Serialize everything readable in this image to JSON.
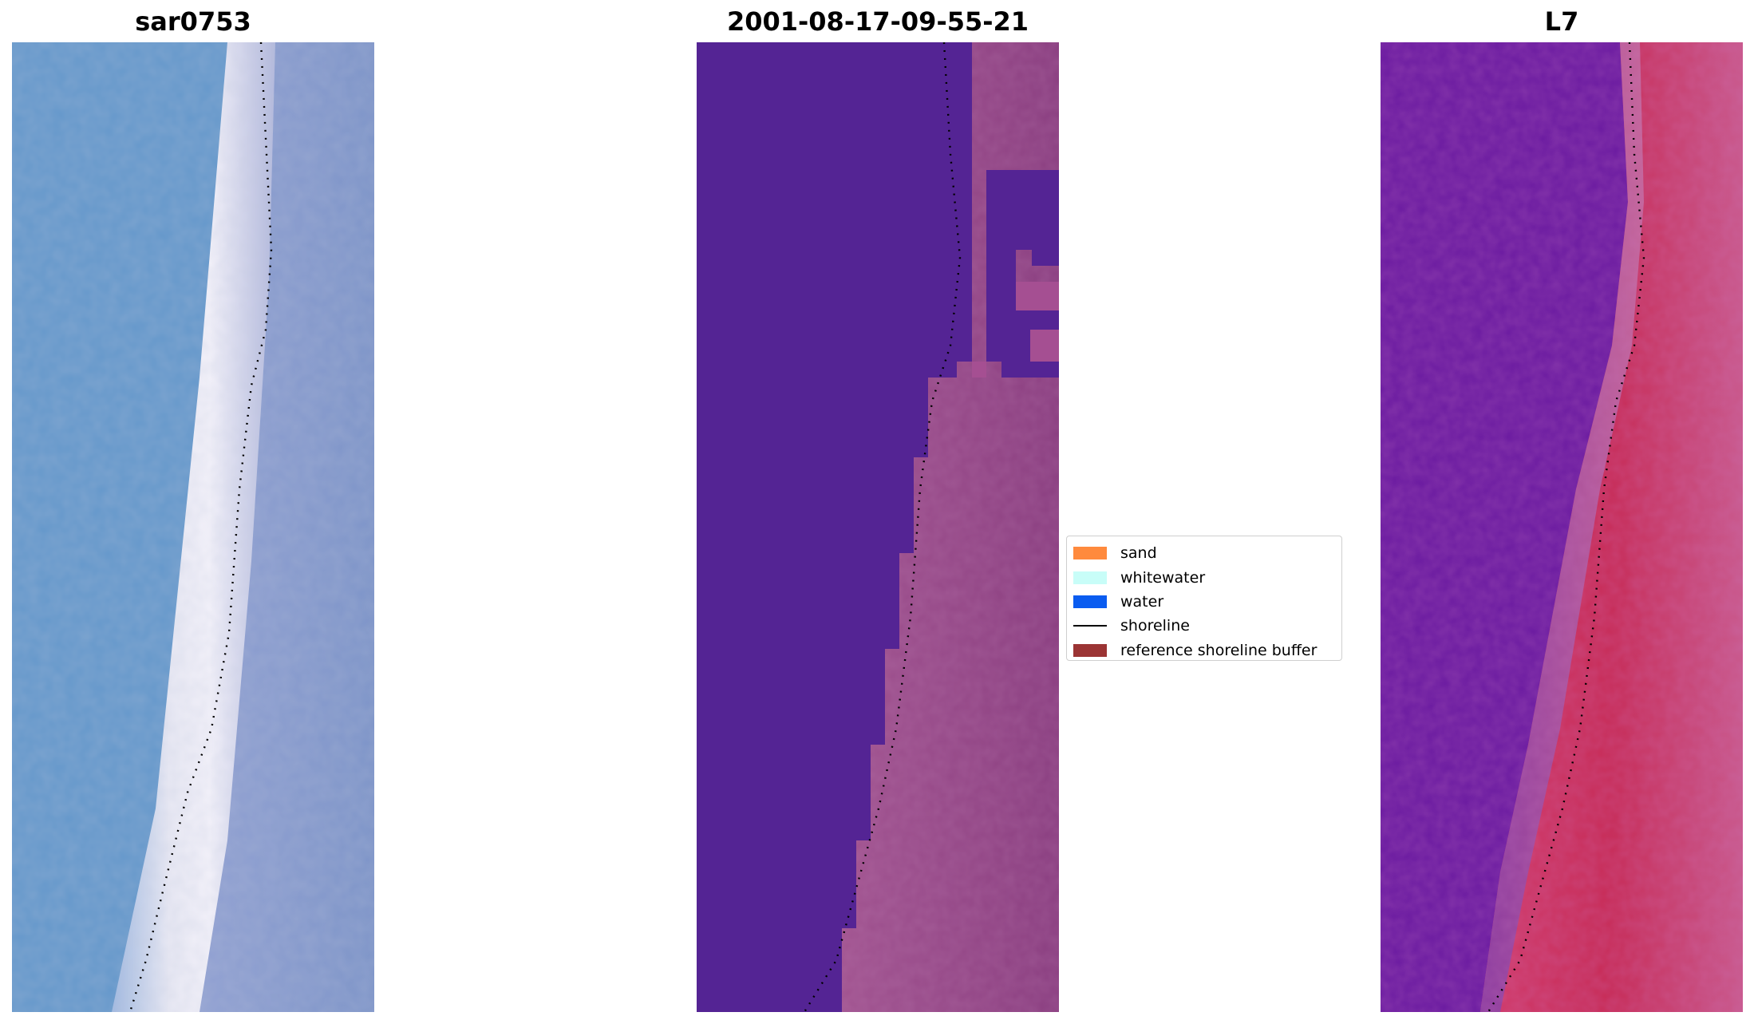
{
  "panels": [
    {
      "id": "rgb",
      "title": "sar0753"
    },
    {
      "id": "classified",
      "title": "2001-08-17-09-55-21"
    },
    {
      "id": "index",
      "title": "L7"
    }
  ],
  "legend": {
    "items": [
      {
        "label": "sand",
        "kind": "patch",
        "color": "#ff8a3d"
      },
      {
        "label": "whitewater",
        "kind": "patch",
        "color": "#c8fdf8"
      },
      {
        "label": "water",
        "kind": "patch",
        "color": "#0a5cf0"
      },
      {
        "label": "shoreline",
        "kind": "line",
        "color": "#000000"
      },
      {
        "label": "reference shoreline buffer",
        "kind": "patch",
        "color": "#9b3434"
      }
    ]
  },
  "colors": {
    "rgb_water": "#6697cc",
    "rgb_surf": "#e6e6f2",
    "classified_water": "#542494",
    "classified_land": "#9a4a8c",
    "index_water": "#6a1aa0",
    "index_land": "#c63a6a",
    "shoreline": "#000000"
  }
}
